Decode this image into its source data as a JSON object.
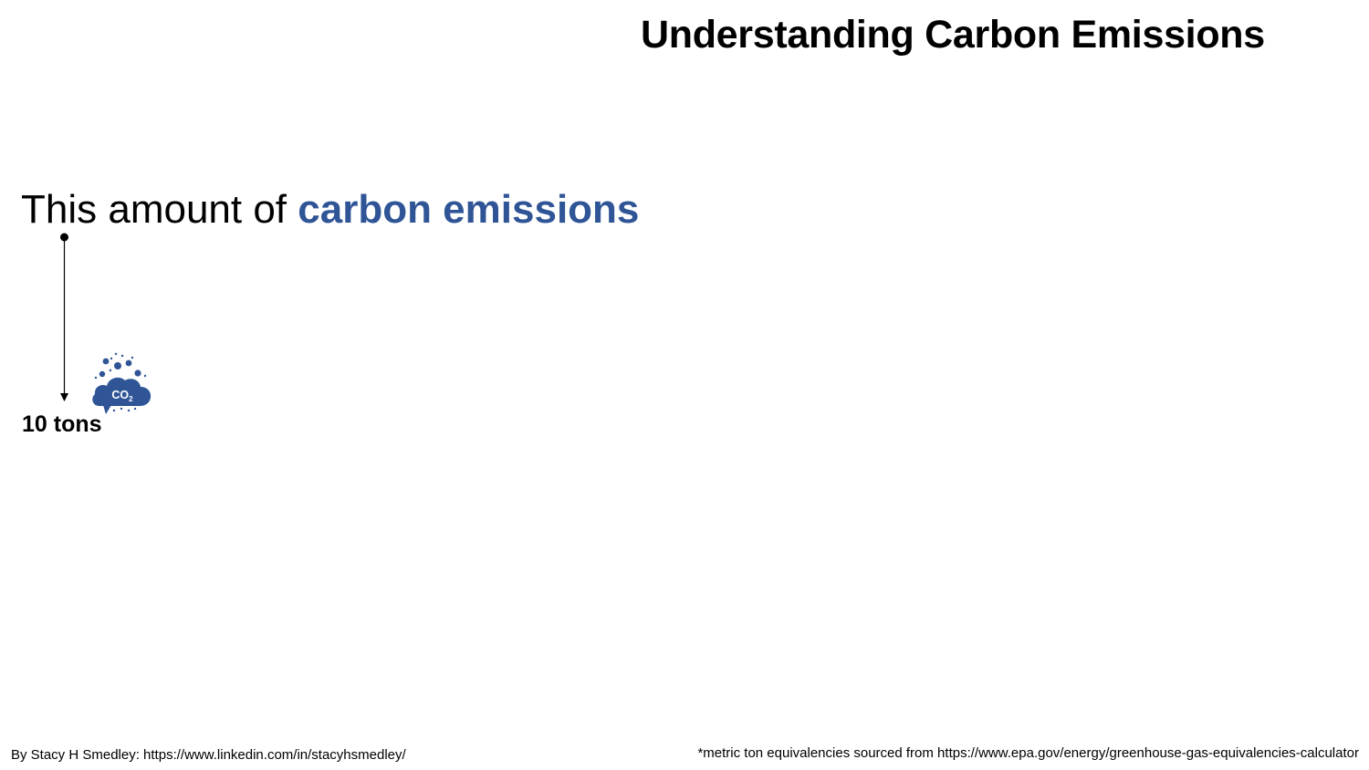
{
  "title": "Understanding Carbon Emissions",
  "headline": {
    "prefix": "This amount of ",
    "highlight": "carbon emissions"
  },
  "marker": {
    "value_label": "10 tons",
    "icon": "co2-cloud-icon",
    "icon_text": "CO2"
  },
  "footer": {
    "credit": "By Stacy H Smedley: https://www.linkedin.com/in/stacyhsmedley/",
    "source": "*metric ton equivalencies sourced from https://www.epa.gov/energy/greenhouse-gas-equivalencies-calculator"
  },
  "colors": {
    "accent": "#2F5597",
    "text": "#000000"
  }
}
